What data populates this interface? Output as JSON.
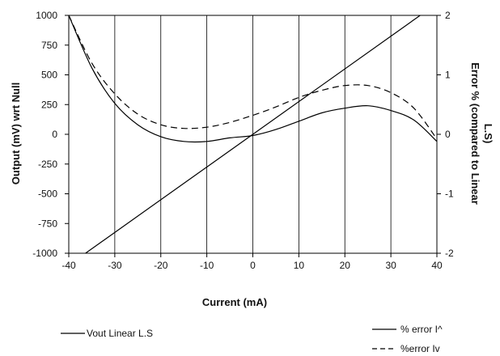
{
  "chart_data": {
    "type": "line",
    "title": "",
    "xlabel": "Current (mA)",
    "ylabel": "Output (mV) wrt Null",
    "y2label_line1": "Error % (compared to Linear",
    "y2label_line2": "L.S)",
    "xlim": [
      -40,
      40
    ],
    "ylim": [
      -1000,
      1000
    ],
    "y2lim": [
      -2,
      2
    ],
    "x_ticks": [
      "-40",
      "-30",
      "-20",
      "-10",
      "0",
      "10",
      "20",
      "30",
      "40"
    ],
    "y_ticks": [
      "1000",
      "750",
      "500",
      "250",
      "0",
      "-250",
      "-500",
      "-750",
      "-1000"
    ],
    "y2_ticks": [
      "2",
      "1",
      "0",
      "-1",
      "-2"
    ],
    "grid": "vertical",
    "legend": [
      {
        "label": "Vout Linear L.S",
        "style": "solid",
        "position": "bottom-left"
      },
      {
        "label": "% error I^",
        "style": "solid",
        "position": "bottom-right"
      },
      {
        "label": "%error Iv",
        "style": "dashed",
        "position": "bottom-right"
      }
    ],
    "series": [
      {
        "name": "Vout Linear L.S",
        "axis": "left",
        "style": "solid",
        "x": [
          -40,
          40
        ],
        "y": [
          -1100,
          1100
        ]
      },
      {
        "name": "% error I^",
        "axis": "right",
        "style": "solid",
        "x": [
          -40,
          -35,
          -30,
          -25,
          -20,
          -15,
          -10,
          -5,
          0,
          5,
          10,
          15,
          20,
          25,
          30,
          35,
          40
        ],
        "y": [
          2.0,
          1.12,
          0.52,
          0.16,
          -0.04,
          -0.12,
          -0.12,
          -0.06,
          -0.02,
          0.08,
          0.22,
          0.36,
          0.44,
          0.48,
          0.4,
          0.24,
          -0.12
        ]
      },
      {
        "name": "%error Iv",
        "axis": "right",
        "style": "dashed",
        "x": [
          -40,
          -35,
          -30,
          -25,
          -20,
          -15,
          -10,
          -5,
          0,
          5,
          10,
          15,
          20,
          25,
          30,
          35,
          40
        ],
        "y": [
          2.0,
          1.2,
          0.68,
          0.34,
          0.16,
          0.1,
          0.12,
          0.2,
          0.32,
          0.46,
          0.62,
          0.74,
          0.82,
          0.82,
          0.7,
          0.44,
          -0.08
        ]
      }
    ]
  }
}
